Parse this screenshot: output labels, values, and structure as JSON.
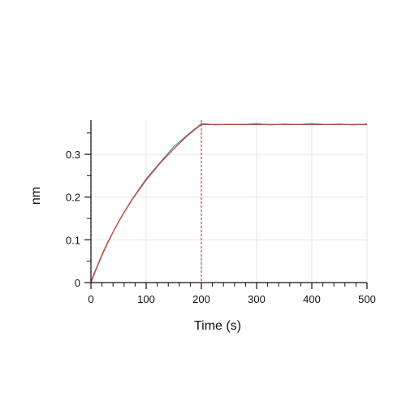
{
  "chart_data": {
    "type": "line",
    "xlabel": "Time (s)",
    "ylabel": "nm",
    "xlim": [
      0,
      500
    ],
    "ylim": [
      0,
      0.38
    ],
    "x_ticks": [
      0,
      100,
      200,
      300,
      400,
      500
    ],
    "x_tick_labels": [
      "0",
      "100",
      "200",
      "300",
      "400",
      "500"
    ],
    "y_ticks": [
      0,
      0.1,
      0.2,
      0.3
    ],
    "y_tick_labels": [
      "0",
      "0.1",
      "0.2",
      "0.3"
    ],
    "grid": true,
    "vertical_markers": [
      0,
      200
    ],
    "series": [
      {
        "role": "measured",
        "color": "#20b2aa",
        "x": [
          0,
          5,
          10,
          20,
          30,
          40,
          50,
          60,
          75,
          100,
          125,
          150,
          175,
          200,
          210,
          225,
          250,
          275,
          300,
          325,
          350,
          375,
          400,
          425,
          450,
          475,
          500
        ],
        "y": [
          0.002,
          0.02,
          0.035,
          0.066,
          0.094,
          0.118,
          0.142,
          0.165,
          0.196,
          0.243,
          0.281,
          0.318,
          0.346,
          0.372,
          0.371,
          0.369,
          0.37,
          0.37,
          0.372,
          0.369,
          0.371,
          0.37,
          0.372,
          0.37,
          0.371,
          0.369,
          0.371
        ]
      },
      {
        "role": "fit",
        "color": "#e53935",
        "x": [
          0,
          5,
          10,
          20,
          30,
          40,
          50,
          60,
          75,
          100,
          125,
          150,
          175,
          200,
          210,
          225,
          250,
          275,
          300,
          325,
          350,
          375,
          400,
          425,
          450,
          475,
          500
        ],
        "y": [
          0.0,
          0.017,
          0.033,
          0.064,
          0.092,
          0.118,
          0.142,
          0.164,
          0.195,
          0.24,
          0.279,
          0.313,
          0.344,
          0.37,
          0.37,
          0.37,
          0.37,
          0.37,
          0.37,
          0.37,
          0.37,
          0.37,
          0.37,
          0.37,
          0.37,
          0.37,
          0.37
        ]
      }
    ]
  },
  "colors": {
    "measured": "#20b2aa",
    "fit": "#e53935",
    "marker": "#e53935",
    "axis": "#111111",
    "grid": "#e6e6e6"
  }
}
